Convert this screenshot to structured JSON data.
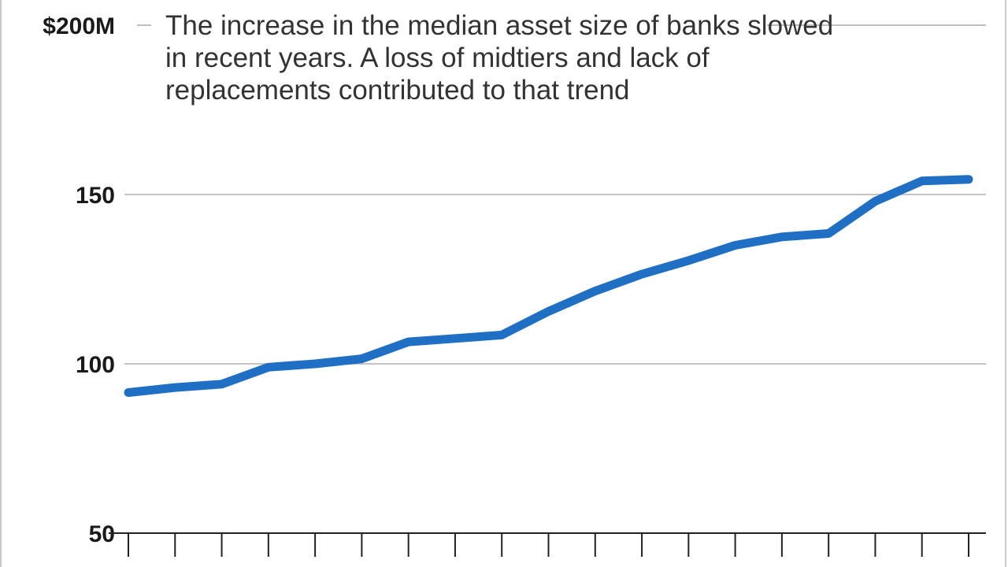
{
  "chart_data": {
    "type": "line",
    "title": "",
    "xlabel": "",
    "ylabel": "",
    "annotation": "The increase in the median asset size of banks slowed in recent years. A loss of midtiers and lack of replacements contributed to that trend",
    "y_ticks": [
      {
        "value": 200,
        "label": "$200M"
      },
      {
        "value": 150,
        "label": "150"
      },
      {
        "value": 100,
        "label": "100"
      },
      {
        "value": 50,
        "label": "50"
      }
    ],
    "ylim": [
      50,
      200
    ],
    "grid": true,
    "x_tick_count": 19,
    "series": [
      {
        "color": "#1f6fc4",
        "values": [
          91.5,
          93,
          94,
          99,
          100,
          101.5,
          106.5,
          107.5,
          108.5,
          115.5,
          121.5,
          126.5,
          130.5,
          135,
          137.5,
          138.5,
          148,
          154,
          154.5
        ]
      }
    ]
  }
}
